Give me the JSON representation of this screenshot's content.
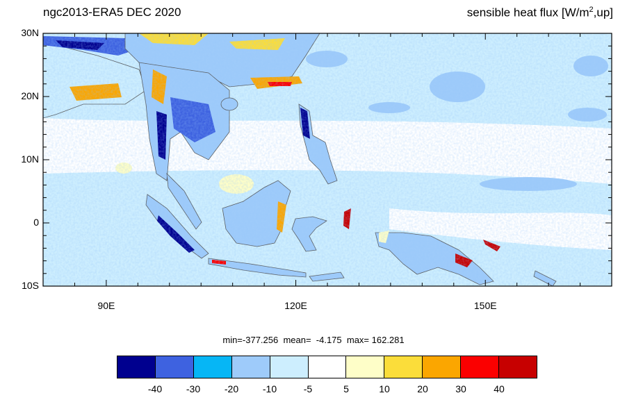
{
  "title_left": "ngc2013-ERA5  DEC 2020",
  "title_right": {
    "main": "sensible heat flux [W/m",
    "sup": "2",
    "tail": ",up]"
  },
  "stats_line": "min=-377.256  mean=  -4.175  max= 162.281",
  "map": {
    "lon_range": [
      80,
      170
    ],
    "lat_range": [
      -10,
      30
    ],
    "lat_ticks": [
      {
        "value": 30,
        "label": "30N"
      },
      {
        "value": 20,
        "label": "20N"
      },
      {
        "value": 10,
        "label": "10N"
      },
      {
        "value": 0,
        "label": "0"
      },
      {
        "value": -10,
        "label": "10S"
      }
    ],
    "lon_ticks": [
      {
        "value": 90,
        "label": "90E"
      },
      {
        "value": 120,
        "label": "120E"
      },
      {
        "value": 150,
        "label": "150E"
      }
    ]
  },
  "colorbar": {
    "colors": [
      "#00008f",
      "#3e62e0",
      "#06b6f5",
      "#9ecbfa",
      "#cdeefe",
      "#ffffff",
      "#fefec8",
      "#fbdd3a",
      "#fba600",
      "#fb0000",
      "#c70000"
    ],
    "labels": [
      "-40",
      "-30",
      "-20",
      "-10",
      "-5",
      "5",
      "10",
      "20",
      "30",
      "40"
    ]
  }
}
